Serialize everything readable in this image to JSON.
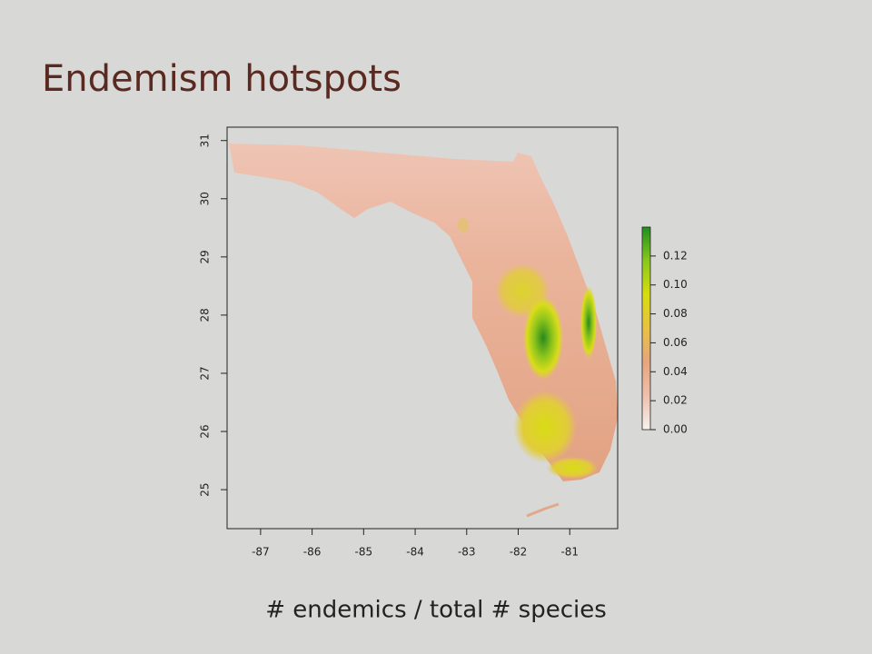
{
  "title": "Endemism hotspots",
  "caption": "# endemics / total # species",
  "chart_data": {
    "type": "raster-map",
    "xlim": [
      -87.65,
      -80.07
    ],
    "ylim": [
      24.33,
      31.23
    ],
    "xticks": [
      -87,
      -86,
      -85,
      -84,
      -83,
      -82,
      -81
    ],
    "yticks": [
      25,
      26,
      27,
      28,
      29,
      30,
      31
    ],
    "colorbar": {
      "lim": [
        0,
        0.14
      ],
      "ticks": [
        {
          "value": 0,
          "label": "0.00"
        },
        0.02,
        0.04,
        0.06,
        0.08,
        {
          "value": 0.1,
          "label": "0.10"
        },
        0.12
      ],
      "colors": [
        "#f7f1ee",
        "#eec0ad",
        "#e7a57e",
        "#e8c244",
        "#d8dc10",
        "#8ac81c",
        "#1e8f1e"
      ]
    }
  }
}
